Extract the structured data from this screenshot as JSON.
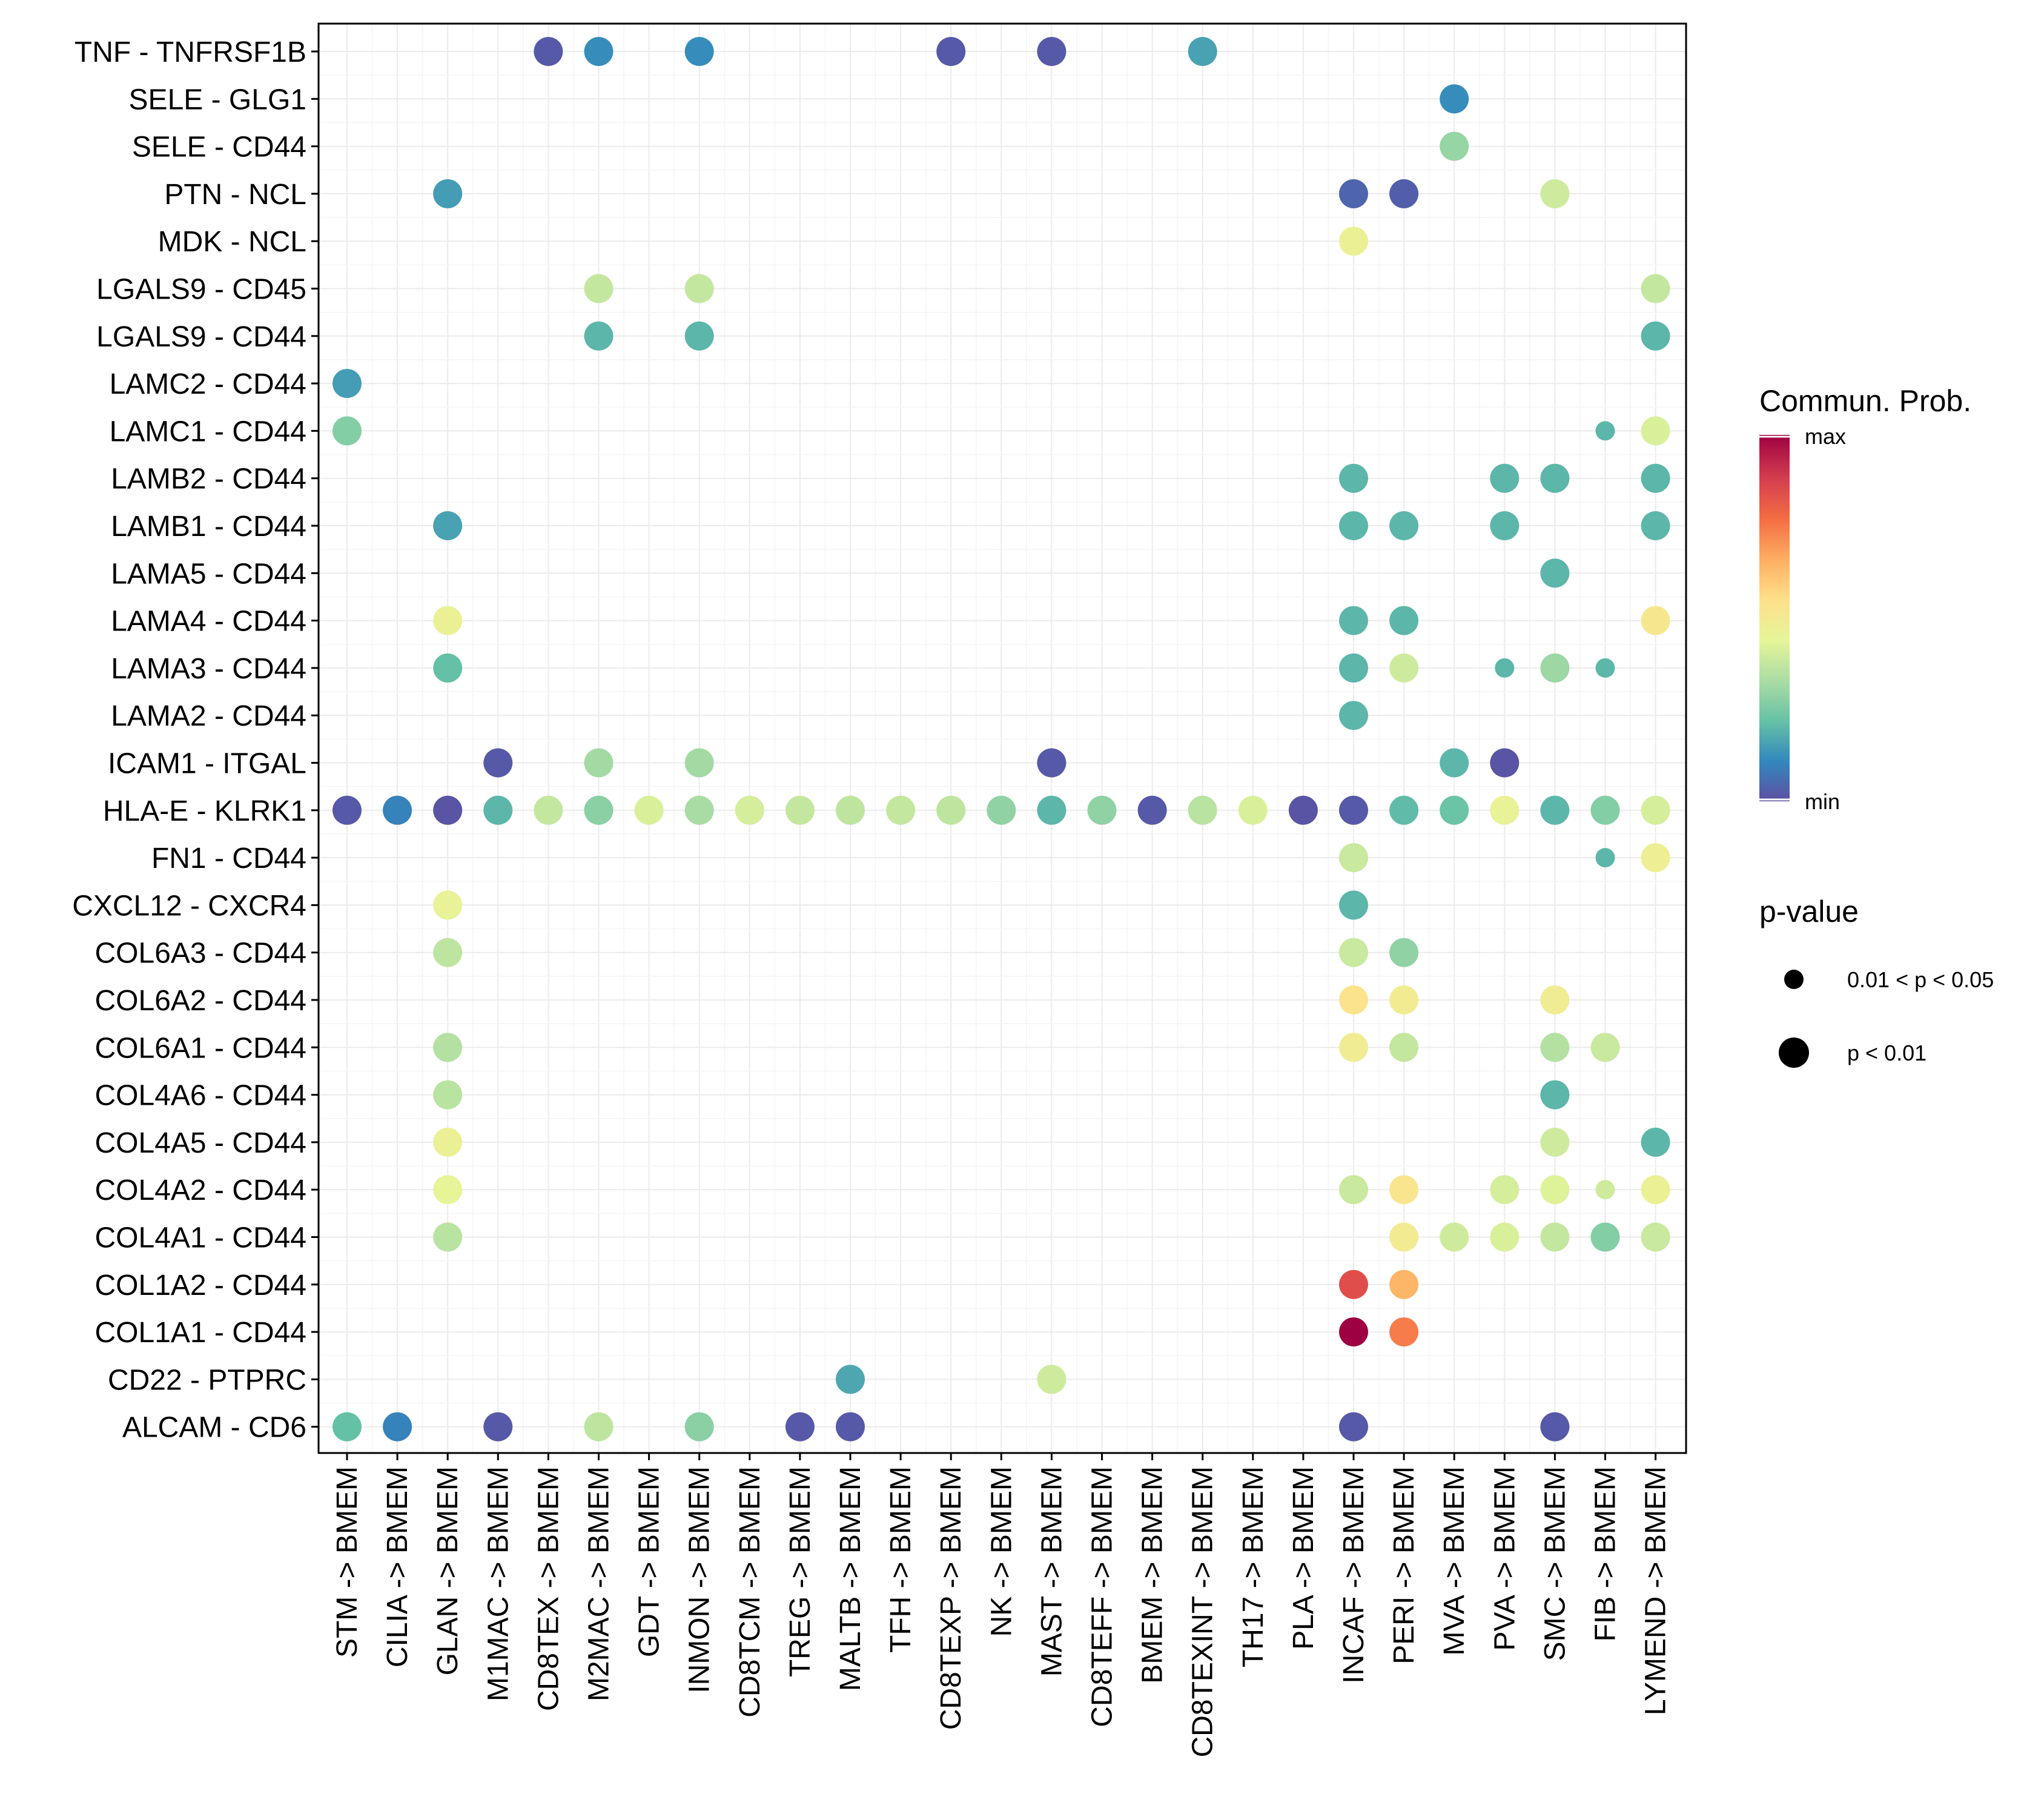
{
  "chart_data": {
    "type": "dot",
    "color_scale": [
      "#5E4FA2",
      "#3288BD",
      "#66C2A5",
      "#ABDDA4",
      "#E6F598",
      "#FEE08B",
      "#FDAE61",
      "#F46D43",
      "#D53E4F",
      "#9E0142"
    ],
    "y_labels": [
      "TNF - TNFRSF1B",
      "SELE - GLG1",
      "SELE - CD44",
      "PTN - NCL",
      "MDK - NCL",
      "LGALS9 - CD45",
      "LGALS9 - CD44",
      "LAMC2 - CD44",
      "LAMC1 - CD44",
      "LAMB2 - CD44",
      "LAMB1 - CD44",
      "LAMA5 - CD44",
      "LAMA4 - CD44",
      "LAMA3 - CD44",
      "LAMA2 - CD44",
      "ICAM1 - ITGAL",
      "HLA-E - KLRK1",
      "FN1 - CD44",
      "CXCL12 - CXCR4",
      "COL6A3 - CD44",
      "COL6A2 - CD44",
      "COL6A1 - CD44",
      "COL4A6 - CD44",
      "COL4A5 - CD44",
      "COL4A2 - CD44",
      "COL4A1 - CD44",
      "COL1A2 - CD44",
      "COL1A1 - CD44",
      "CD22 - PTPRC",
      "ALCAM - CD6"
    ],
    "x_labels": [
      "STM -> BMEM",
      "CILIA -> BMEM",
      "GLAN -> BMEM",
      "M1MAC -> BMEM",
      "CD8TEX -> BMEM",
      "M2MAC -> BMEM",
      "GDT -> BMEM",
      "INMON -> BMEM",
      "CD8TCM -> BMEM",
      "TREG -> BMEM",
      "MALTB -> BMEM",
      "TFH -> BMEM",
      "CD8TEXP -> BMEM",
      "NK -> BMEM",
      "MAST -> BMEM",
      "CD8TEFF -> BMEM",
      "BMEM -> BMEM",
      "CD8TEXINT -> BMEM",
      "TH17 -> BMEM",
      "PLA -> BMEM",
      "INCAF -> BMEM",
      "PERI -> BMEM",
      "MVA -> BMEM",
      "PVA -> BMEM",
      "SMC -> BMEM",
      "FIB -> BMEM",
      "LYMEND -> BMEM"
    ],
    "points": [
      {
        "y": "TNF - TNFRSF1B",
        "x": "CD8TEX -> BMEM",
        "prob": 0.02,
        "p": "<0.01"
      },
      {
        "y": "TNF - TNFRSF1B",
        "x": "M2MAC -> BMEM",
        "prob": 0.12,
        "p": "<0.01"
      },
      {
        "y": "TNF - TNFRSF1B",
        "x": "INMON -> BMEM",
        "prob": 0.12,
        "p": "<0.01"
      },
      {
        "y": "TNF - TNFRSF1B",
        "x": "CD8TEXP -> BMEM",
        "prob": 0.02,
        "p": "<0.01"
      },
      {
        "y": "TNF - TNFRSF1B",
        "x": "MAST -> BMEM",
        "prob": 0.02,
        "p": "<0.01"
      },
      {
        "y": "TNF - TNFRSF1B",
        "x": "CD8TEXINT -> BMEM",
        "prob": 0.16,
        "p": "<0.01"
      },
      {
        "y": "SELE - GLG1",
        "x": "MVA -> BMEM",
        "prob": 0.12,
        "p": "<0.01"
      },
      {
        "y": "SELE - CD44",
        "x": "MVA -> BMEM",
        "prob": 0.3,
        "p": "<0.01"
      },
      {
        "y": "PTN - NCL",
        "x": "GLAN -> BMEM",
        "prob": 0.15,
        "p": "<0.01"
      },
      {
        "y": "PTN - NCL",
        "x": "INCAF -> BMEM",
        "prob": 0.04,
        "p": "<0.01"
      },
      {
        "y": "PTN - NCL",
        "x": "PERI -> BMEM",
        "prob": 0.03,
        "p": "<0.01"
      },
      {
        "y": "PTN - NCL",
        "x": "SMC -> BMEM",
        "prob": 0.4,
        "p": "<0.01"
      },
      {
        "y": "MDK - NCL",
        "x": "INCAF -> BMEM",
        "prob": 0.47,
        "p": "<0.01"
      },
      {
        "y": "LGALS9 - CD45",
        "x": "M2MAC -> BMEM",
        "prob": 0.38,
        "p": "<0.01"
      },
      {
        "y": "LGALS9 - CD45",
        "x": "INMON -> BMEM",
        "prob": 0.38,
        "p": "<0.01"
      },
      {
        "y": "LGALS9 - CD45",
        "x": "LYMEND -> BMEM",
        "prob": 0.38,
        "p": "<0.01"
      },
      {
        "y": "LGALS9 - CD44",
        "x": "M2MAC -> BMEM",
        "prob": 0.2,
        "p": "<0.01"
      },
      {
        "y": "LGALS9 - CD44",
        "x": "INMON -> BMEM",
        "prob": 0.2,
        "p": "<0.01"
      },
      {
        "y": "LGALS9 - CD44",
        "x": "LYMEND -> BMEM",
        "prob": 0.2,
        "p": "<0.01"
      },
      {
        "y": "LAMC2 - CD44",
        "x": "STM -> BMEM",
        "prob": 0.15,
        "p": "<0.01"
      },
      {
        "y": "LAMC1 - CD44",
        "x": "STM -> BMEM",
        "prob": 0.27,
        "p": "<0.01"
      },
      {
        "y": "LAMC1 - CD44",
        "x": "FIB -> BMEM",
        "prob": 0.2,
        "p": "0.01-0.05"
      },
      {
        "y": "LAMC1 - CD44",
        "x": "LYMEND -> BMEM",
        "prob": 0.42,
        "p": "<0.01"
      },
      {
        "y": "LAMB2 - CD44",
        "x": "INCAF -> BMEM",
        "prob": 0.2,
        "p": "<0.01"
      },
      {
        "y": "LAMB2 - CD44",
        "x": "PVA -> BMEM",
        "prob": 0.2,
        "p": "<0.01"
      },
      {
        "y": "LAMB2 - CD44",
        "x": "SMC -> BMEM",
        "prob": 0.2,
        "p": "<0.01"
      },
      {
        "y": "LAMB2 - CD44",
        "x": "LYMEND -> BMEM",
        "prob": 0.2,
        "p": "<0.01"
      },
      {
        "y": "LAMB1 - CD44",
        "x": "GLAN -> BMEM",
        "prob": 0.16,
        "p": "<0.01"
      },
      {
        "y": "LAMB1 - CD44",
        "x": "INCAF -> BMEM",
        "prob": 0.2,
        "p": "<0.01"
      },
      {
        "y": "LAMB1 - CD44",
        "x": "PERI -> BMEM",
        "prob": 0.2,
        "p": "<0.01"
      },
      {
        "y": "LAMB1 - CD44",
        "x": "PVA -> BMEM",
        "prob": 0.2,
        "p": "<0.01"
      },
      {
        "y": "LAMB1 - CD44",
        "x": "LYMEND -> BMEM",
        "prob": 0.2,
        "p": "<0.01"
      },
      {
        "y": "LAMA5 - CD44",
        "x": "SMC -> BMEM",
        "prob": 0.2,
        "p": "<0.01"
      },
      {
        "y": "LAMA4 - CD44",
        "x": "GLAN -> BMEM",
        "prob": 0.47,
        "p": "<0.01"
      },
      {
        "y": "LAMA4 - CD44",
        "x": "INCAF -> BMEM",
        "prob": 0.2,
        "p": "<0.01"
      },
      {
        "y": "LAMA4 - CD44",
        "x": "PERI -> BMEM",
        "prob": 0.2,
        "p": "<0.01"
      },
      {
        "y": "LAMA4 - CD44",
        "x": "LYMEND -> BMEM",
        "prob": 0.52,
        "p": "<0.01"
      },
      {
        "y": "LAMA3 - CD44",
        "x": "GLAN -> BMEM",
        "prob": 0.22,
        "p": "<0.01"
      },
      {
        "y": "LAMA3 - CD44",
        "x": "INCAF -> BMEM",
        "prob": 0.2,
        "p": "<0.01"
      },
      {
        "y": "LAMA3 - CD44",
        "x": "PERI -> BMEM",
        "prob": 0.4,
        "p": "<0.01"
      },
      {
        "y": "LAMA3 - CD44",
        "x": "PVA -> BMEM",
        "prob": 0.2,
        "p": "0.01-0.05"
      },
      {
        "y": "LAMA3 - CD44",
        "x": "SMC -> BMEM",
        "prob": 0.31,
        "p": "<0.01"
      },
      {
        "y": "LAMA3 - CD44",
        "x": "FIB -> BMEM",
        "prob": 0.2,
        "p": "0.01-0.05"
      },
      {
        "y": "LAMA2 - CD44",
        "x": "INCAF -> BMEM",
        "prob": 0.2,
        "p": "<0.01"
      },
      {
        "y": "ICAM1 - ITGAL",
        "x": "M1MAC -> BMEM",
        "prob": 0.02,
        "p": "<0.01"
      },
      {
        "y": "ICAM1 - ITGAL",
        "x": "M2MAC -> BMEM",
        "prob": 0.32,
        "p": "<0.01"
      },
      {
        "y": "ICAM1 - ITGAL",
        "x": "INMON -> BMEM",
        "prob": 0.32,
        "p": "<0.01"
      },
      {
        "y": "ICAM1 - ITGAL",
        "x": "MAST -> BMEM",
        "prob": 0.02,
        "p": "<0.01"
      },
      {
        "y": "ICAM1 - ITGAL",
        "x": "MVA -> BMEM",
        "prob": 0.2,
        "p": "<0.01"
      },
      {
        "y": "ICAM1 - ITGAL",
        "x": "PVA -> BMEM",
        "prob": 0.01,
        "p": "<0.01"
      },
      {
        "y": "HLA-E - KLRK1",
        "x": "STM -> BMEM",
        "prob": 0.02,
        "p": "<0.01"
      },
      {
        "y": "HLA-E - KLRK1",
        "x": "CILIA -> BMEM",
        "prob": 0.1,
        "p": "<0.01"
      },
      {
        "y": "HLA-E - KLRK1",
        "x": "GLAN -> BMEM",
        "prob": 0.01,
        "p": "<0.01"
      },
      {
        "y": "HLA-E - KLRK1",
        "x": "M1MAC -> BMEM",
        "prob": 0.2,
        "p": "<0.01"
      },
      {
        "y": "HLA-E - KLRK1",
        "x": "CD8TEX -> BMEM",
        "prob": 0.38,
        "p": "<0.01"
      },
      {
        "y": "HLA-E - KLRK1",
        "x": "M2MAC -> BMEM",
        "prob": 0.28,
        "p": "<0.01"
      },
      {
        "y": "HLA-E - KLRK1",
        "x": "GDT -> BMEM",
        "prob": 0.42,
        "p": "<0.01"
      },
      {
        "y": "HLA-E - KLRK1",
        "x": "INMON -> BMEM",
        "prob": 0.33,
        "p": "<0.01"
      },
      {
        "y": "HLA-E - KLRK1",
        "x": "CD8TCM -> BMEM",
        "prob": 0.41,
        "p": "<0.01"
      },
      {
        "y": "HLA-E - KLRK1",
        "x": "TREG -> BMEM",
        "prob": 0.38,
        "p": "<0.01"
      },
      {
        "y": "HLA-E - KLRK1",
        "x": "MALTB -> BMEM",
        "prob": 0.37,
        "p": "<0.01"
      },
      {
        "y": "HLA-E - KLRK1",
        "x": "TFH -> BMEM",
        "prob": 0.38,
        "p": "<0.01"
      },
      {
        "y": "HLA-E - KLRK1",
        "x": "CD8TEXP -> BMEM",
        "prob": 0.37,
        "p": "<0.01"
      },
      {
        "y": "HLA-E - KLRK1",
        "x": "NK -> BMEM",
        "prob": 0.29,
        "p": "<0.01"
      },
      {
        "y": "HLA-E - KLRK1",
        "x": "MAST -> BMEM",
        "prob": 0.2,
        "p": "<0.01"
      },
      {
        "y": "HLA-E - KLRK1",
        "x": "CD8TEFF -> BMEM",
        "prob": 0.29,
        "p": "<0.01"
      },
      {
        "y": "HLA-E - KLRK1",
        "x": "BMEM -> BMEM",
        "prob": 0.02,
        "p": "<0.01"
      },
      {
        "y": "HLA-E - KLRK1",
        "x": "CD8TEXINT -> BMEM",
        "prob": 0.36,
        "p": "<0.01"
      },
      {
        "y": "HLA-E - KLRK1",
        "x": "TH17 -> BMEM",
        "prob": 0.42,
        "p": "<0.01"
      },
      {
        "y": "HLA-E - KLRK1",
        "x": "PLA -> BMEM",
        "prob": 0.01,
        "p": "<0.01"
      },
      {
        "y": "HLA-E - KLRK1",
        "x": "INCAF -> BMEM",
        "prob": 0.02,
        "p": "<0.01"
      },
      {
        "y": "HLA-E - KLRK1",
        "x": "PERI -> BMEM",
        "prob": 0.21,
        "p": "<0.01"
      },
      {
        "y": "HLA-E - KLRK1",
        "x": "MVA -> BMEM",
        "prob": 0.23,
        "p": "<0.01"
      },
      {
        "y": "HLA-E - KLRK1",
        "x": "PVA -> BMEM",
        "prob": 0.46,
        "p": "<0.01"
      },
      {
        "y": "HLA-E - KLRK1",
        "x": "SMC -> BMEM",
        "prob": 0.2,
        "p": "<0.01"
      },
      {
        "y": "HLA-E - KLRK1",
        "x": "FIB -> BMEM",
        "prob": 0.27,
        "p": "<0.01"
      },
      {
        "y": "HLA-E - KLRK1",
        "x": "LYMEND -> BMEM",
        "prob": 0.41,
        "p": "<0.01"
      },
      {
        "y": "FN1 - CD44",
        "x": "INCAF -> BMEM",
        "prob": 0.39,
        "p": "<0.01"
      },
      {
        "y": "FN1 - CD44",
        "x": "FIB -> BMEM",
        "prob": 0.2,
        "p": "0.01-0.05"
      },
      {
        "y": "FN1 - CD44",
        "x": "LYMEND -> BMEM",
        "prob": 0.48,
        "p": "<0.01"
      },
      {
        "y": "CXCL12 - CXCR4",
        "x": "GLAN -> BMEM",
        "prob": 0.46,
        "p": "<0.01"
      },
      {
        "y": "CXCL12 - CXCR4",
        "x": "INCAF -> BMEM",
        "prob": 0.2,
        "p": "<0.01"
      },
      {
        "y": "COL6A3 - CD44",
        "x": "GLAN -> BMEM",
        "prob": 0.37,
        "p": "<0.01"
      },
      {
        "y": "COL6A3 - CD44",
        "x": "INCAF -> BMEM",
        "prob": 0.39,
        "p": "<0.01"
      },
      {
        "y": "COL6A3 - CD44",
        "x": "PERI -> BMEM",
        "prob": 0.29,
        "p": "<0.01"
      },
      {
        "y": "COL6A2 - CD44",
        "x": "INCAF -> BMEM",
        "prob": 0.54,
        "p": "<0.01"
      },
      {
        "y": "COL6A2 - CD44",
        "x": "PERI -> BMEM",
        "prob": 0.5,
        "p": "<0.01"
      },
      {
        "y": "COL6A2 - CD44",
        "x": "SMC -> BMEM",
        "prob": 0.49,
        "p": "<0.01"
      },
      {
        "y": "COL6A1 - CD44",
        "x": "GLAN -> BMEM",
        "prob": 0.35,
        "p": "<0.01"
      },
      {
        "y": "COL6A1 - CD44",
        "x": "INCAF -> BMEM",
        "prob": 0.49,
        "p": "<0.01"
      },
      {
        "y": "COL6A1 - CD44",
        "x": "PERI -> BMEM",
        "prob": 0.38,
        "p": "<0.01"
      },
      {
        "y": "COL6A1 - CD44",
        "x": "SMC -> BMEM",
        "prob": 0.35,
        "p": "<0.01"
      },
      {
        "y": "COL6A1 - CD44",
        "x": "FIB -> BMEM",
        "prob": 0.39,
        "p": "<0.01"
      },
      {
        "y": "COL4A6 - CD44",
        "x": "GLAN -> BMEM",
        "prob": 0.36,
        "p": "<0.01"
      },
      {
        "y": "COL4A6 - CD44",
        "x": "SMC -> BMEM",
        "prob": 0.2,
        "p": "<0.01"
      },
      {
        "y": "COL4A5 - CD44",
        "x": "GLAN -> BMEM",
        "prob": 0.47,
        "p": "<0.01"
      },
      {
        "y": "COL4A5 - CD44",
        "x": "SMC -> BMEM",
        "prob": 0.4,
        "p": "<0.01"
      },
      {
        "y": "COL4A5 - CD44",
        "x": "LYMEND -> BMEM",
        "prob": 0.2,
        "p": "<0.01"
      },
      {
        "y": "COL4A2 - CD44",
        "x": "GLAN -> BMEM",
        "prob": 0.45,
        "p": "<0.01"
      },
      {
        "y": "COL4A2 - CD44",
        "x": "INCAF -> BMEM",
        "prob": 0.39,
        "p": "<0.01"
      },
      {
        "y": "COL4A2 - CD44",
        "x": "PERI -> BMEM",
        "prob": 0.53,
        "p": "<0.01"
      },
      {
        "y": "COL4A2 - CD44",
        "x": "PVA -> BMEM",
        "prob": 0.41,
        "p": "<0.01"
      },
      {
        "y": "COL4A2 - CD44",
        "x": "SMC -> BMEM",
        "prob": 0.43,
        "p": "<0.01"
      },
      {
        "y": "COL4A2 - CD44",
        "x": "FIB -> BMEM",
        "prob": 0.4,
        "p": "0.01-0.05"
      },
      {
        "y": "COL4A2 - CD44",
        "x": "LYMEND -> BMEM",
        "prob": 0.47,
        "p": "<0.01"
      },
      {
        "y": "COL4A1 - CD44",
        "x": "GLAN -> BMEM",
        "prob": 0.36,
        "p": "<0.01"
      },
      {
        "y": "COL4A1 - CD44",
        "x": "PERI -> BMEM",
        "prob": 0.5,
        "p": "<0.01"
      },
      {
        "y": "COL4A1 - CD44",
        "x": "MVA -> BMEM",
        "prob": 0.4,
        "p": "<0.01"
      },
      {
        "y": "COL4A1 - CD44",
        "x": "PVA -> BMEM",
        "prob": 0.42,
        "p": "<0.01"
      },
      {
        "y": "COL4A1 - CD44",
        "x": "SMC -> BMEM",
        "prob": 0.38,
        "p": "<0.01"
      },
      {
        "y": "COL4A1 - CD44",
        "x": "FIB -> BMEM",
        "prob": 0.27,
        "p": "<0.01"
      },
      {
        "y": "COL4A1 - CD44",
        "x": "LYMEND -> BMEM",
        "prob": 0.39,
        "p": "<0.01"
      },
      {
        "y": "COL1A2 - CD44",
        "x": "INCAF -> BMEM",
        "prob": 0.85,
        "p": "<0.01"
      },
      {
        "y": "COL1A2 - CD44",
        "x": "PERI -> BMEM",
        "prob": 0.65,
        "p": "<0.01"
      },
      {
        "y": "COL1A1 - CD44",
        "x": "INCAF -> BMEM",
        "prob": 1.0,
        "p": "<0.01"
      },
      {
        "y": "COL1A1 - CD44",
        "x": "PERI -> BMEM",
        "prob": 0.75,
        "p": "<0.01"
      },
      {
        "y": "CD22 - PTPRC",
        "x": "MALTB -> BMEM",
        "prob": 0.17,
        "p": "<0.01"
      },
      {
        "y": "CD22 - PTPRC",
        "x": "MAST -> BMEM",
        "prob": 0.4,
        "p": "<0.01"
      },
      {
        "y": "ALCAM - CD6",
        "x": "STM -> BMEM",
        "prob": 0.22,
        "p": "<0.01"
      },
      {
        "y": "ALCAM - CD6",
        "x": "CILIA -> BMEM",
        "prob": 0.1,
        "p": "<0.01"
      },
      {
        "y": "ALCAM - CD6",
        "x": "M1MAC -> BMEM",
        "prob": 0.02,
        "p": "<0.01"
      },
      {
        "y": "ALCAM - CD6",
        "x": "M2MAC -> BMEM",
        "prob": 0.37,
        "p": "<0.01"
      },
      {
        "y": "ALCAM - CD6",
        "x": "INMON -> BMEM",
        "prob": 0.28,
        "p": "<0.01"
      },
      {
        "y": "ALCAM - CD6",
        "x": "TREG -> BMEM",
        "prob": 0.02,
        "p": "<0.01"
      },
      {
        "y": "ALCAM - CD6",
        "x": "MALTB -> BMEM",
        "prob": 0.02,
        "p": "<0.01"
      },
      {
        "y": "ALCAM - CD6",
        "x": "INCAF -> BMEM",
        "prob": 0.02,
        "p": "<0.01"
      },
      {
        "y": "ALCAM - CD6",
        "x": "SMC -> BMEM",
        "prob": 0.02,
        "p": "<0.01"
      }
    ],
    "legend": {
      "color_title": "Commun. Prob.",
      "color_max": "max",
      "color_min": "min",
      "size_title": "p-value",
      "size_items": [
        {
          "label": "0.01 < p < 0.05",
          "p": "0.01-0.05"
        },
        {
          "label": "p < 0.01",
          "p": "<0.01"
        }
      ]
    }
  }
}
